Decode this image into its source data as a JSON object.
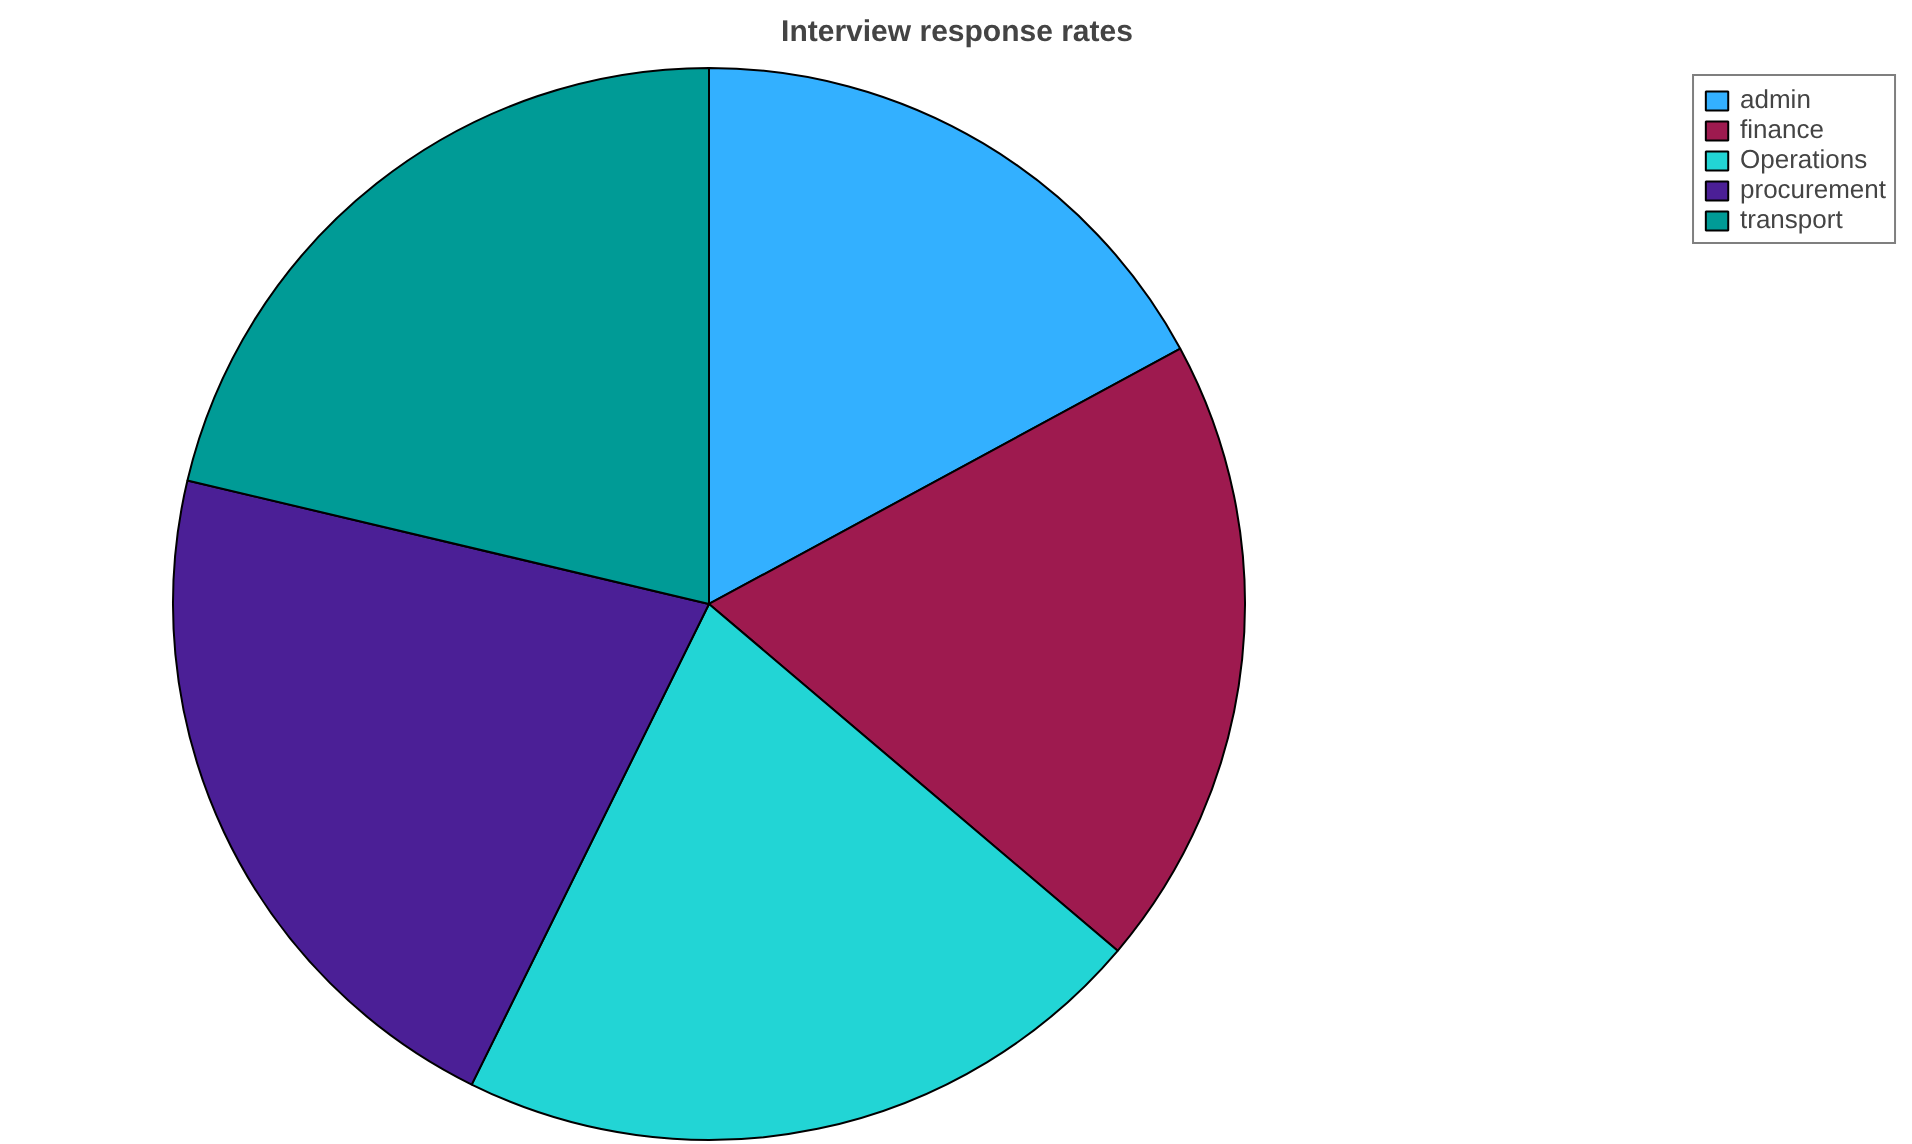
{
  "chart_data": {
    "type": "pie",
    "title": "Interview response rates",
    "categories": [
      "admin",
      "finance",
      "Operations",
      "procurement",
      "transport"
    ],
    "values": [
      17.1,
      19.1,
      21.1,
      21.4,
      21.3
    ],
    "colors": [
      "#33b0ff",
      "#9e1a4f",
      "#22d5d5",
      "#4b1f96",
      "#009b96"
    ],
    "legend": "top right"
  }
}
